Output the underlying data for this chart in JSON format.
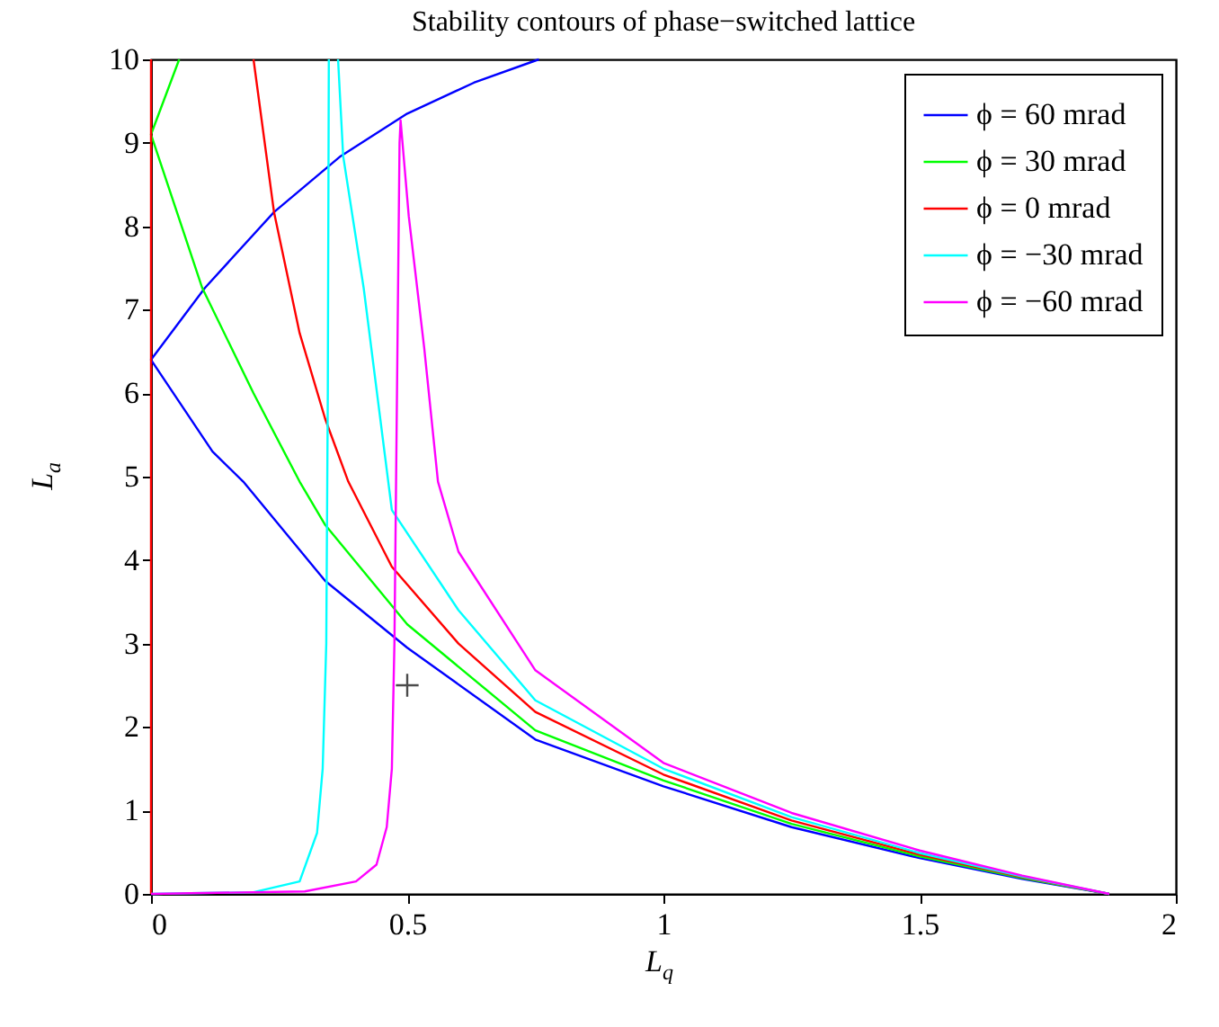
{
  "chart_data": {
    "type": "line",
    "title": "Stability contours of phase−switched lattice",
    "xlabel": "L$_{q}$",
    "ylabel": "L$_{a}$",
    "xlim": [
      0,
      2
    ],
    "ylim": [
      0,
      10
    ],
    "xticks": [
      0,
      0.5,
      1,
      1.5,
      2
    ],
    "yticks": [
      0,
      1,
      2,
      3,
      4,
      5,
      6,
      7,
      8,
      9,
      10
    ],
    "grid": false,
    "legend": "top right",
    "series": [
      {
        "name": "ϕ = 60 mrad",
        "color": "#0000ff",
        "x": [
          0.757,
          0.63,
          0.5,
          0.37,
          0.24,
          0.105,
          0,
          0.12,
          0.18,
          0.34,
          0.5,
          0.75,
          1,
          1.25,
          1.5,
          1.7,
          1.87
        ],
        "values": [
          10,
          9.72,
          9.35,
          8.84,
          8.17,
          7.26,
          6.4,
          5.3,
          4.94,
          3.75,
          2.95,
          1.85,
          1.29,
          0.8,
          0.43,
          0.18,
          0
        ]
      },
      {
        "name": "ϕ = 30 mrad",
        "color": "#00ff00",
        "x": [
          0.055,
          0,
          0.1,
          0.2,
          0.29,
          0.34,
          0.5,
          0.75,
          1,
          1.25,
          1.5,
          1.7,
          1.87
        ],
        "values": [
          10,
          9.1,
          7.26,
          6.0,
          4.94,
          4.42,
          3.23,
          1.96,
          1.36,
          0.84,
          0.45,
          0.19,
          0
        ]
      },
      {
        "name": "ϕ = 0 mrad",
        "color": "#ff0000",
        "x": [
          0,
          0,
          0,
          0,
          0,
          0,
          0,
          0,
          0,
          0,
          0,
          0.1,
          0.2,
          0.24,
          0.29,
          0.34,
          0.385,
          0.47,
          0.6,
          0.75,
          1,
          1.25,
          1.5,
          1.7,
          1.87
        ],
        "values": [
          0,
          1,
          2,
          3,
          4,
          5,
          6,
          7,
          8,
          9,
          10,
          null,
          10,
          8.17,
          6.72,
          5.69,
          4.94,
          3.92,
          3.0,
          2.18,
          1.43,
          0.88,
          0.47,
          0.2,
          0
        ]
      },
      {
        "name": "ϕ = −30 mrad",
        "color": "#00ffff",
        "x": [
          0,
          0.2,
          0.29,
          0.324,
          0.335,
          0.342,
          0.345,
          0.347,
          0.356,
          0.365,
          0.375,
          0.415,
          0.47,
          0.6,
          0.75,
          1,
          1.25,
          1.5,
          1.7,
          1.87
        ],
        "values": [
          0,
          0.02,
          0.15,
          0.73,
          1.5,
          3,
          6,
          10,
          null,
          10,
          8.84,
          7.26,
          4.6,
          3.4,
          2.32,
          1.5,
          0.92,
          0.49,
          0.21,
          0
        ]
      },
      {
        "name": "ϕ = −60 mrad",
        "color": "#ff00ff",
        "x": [
          0,
          0.3,
          0.4,
          0.44,
          0.46,
          0.47,
          0.475,
          0.48,
          0.485,
          0.487,
          0.503,
          0.533,
          0.56,
          0.6,
          0.75,
          1,
          1.25,
          1.5,
          1.7,
          1.87
        ],
        "values": [
          0,
          0.03,
          0.15,
          0.35,
          0.8,
          1.5,
          3,
          6,
          9,
          9.27,
          8.12,
          6.55,
          4.94,
          4.1,
          2.68,
          1.57,
          0.97,
          0.52,
          0.22,
          0
        ]
      },
      {
        "type": "scatter",
        "color": "#000000",
        "marker": "cross",
        "x": [
          0.5
        ],
        "values": [
          2.5
        ]
      }
    ]
  }
}
